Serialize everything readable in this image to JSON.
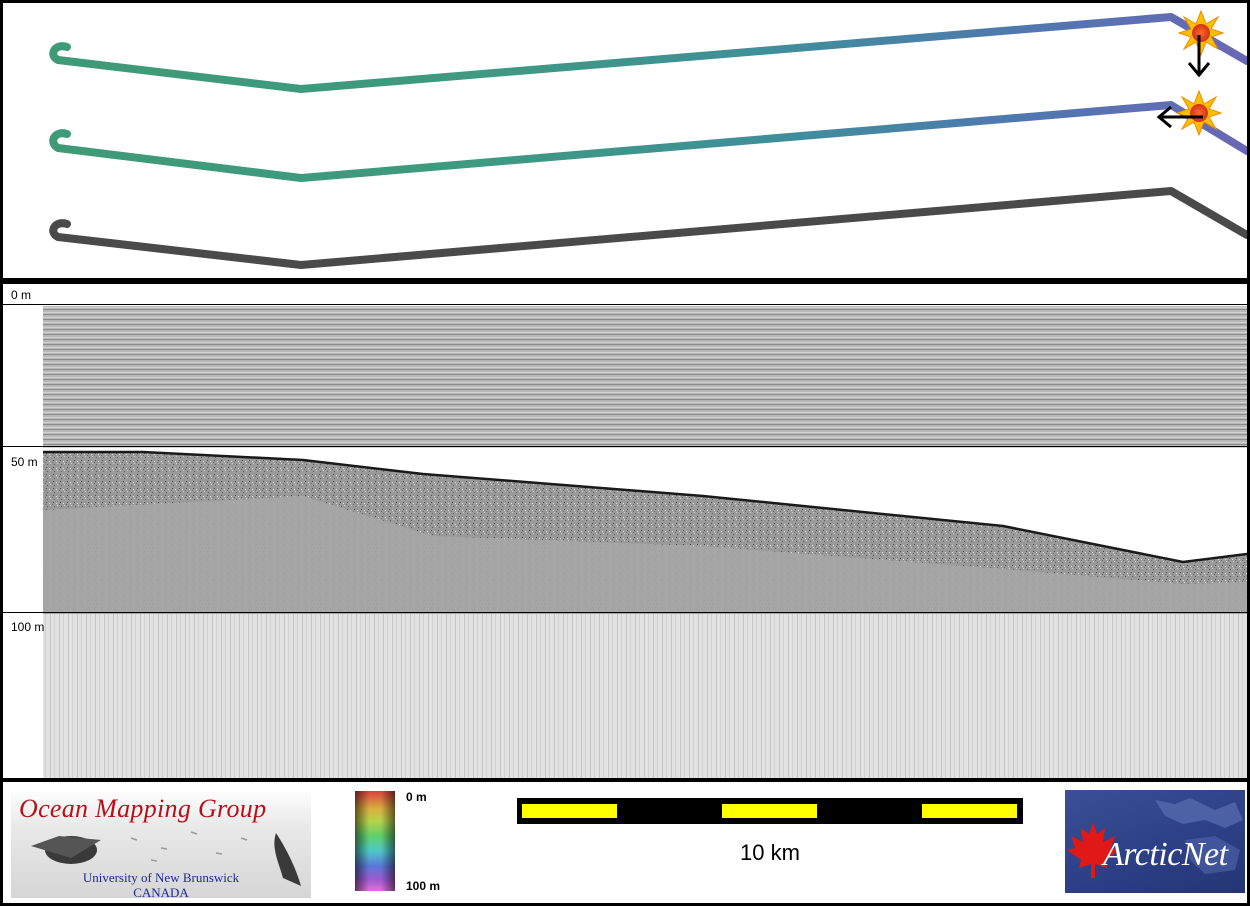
{
  "profile": {
    "depth_labels": [
      {
        "text": "0 m"
      },
      {
        "text": "50 m"
      },
      {
        "text": "100 m"
      }
    ]
  },
  "colorbar": {
    "top_label": "0 m",
    "bottom_label": "100 m"
  },
  "scalebar": {
    "label": "10 km",
    "fill_color": "#ffff00",
    "segment_color": "#000000"
  },
  "logos": {
    "omg": {
      "title": "Ocean Mapping Group",
      "university": "University of New Brunswick",
      "country": "CANADA"
    },
    "arcticnet": {
      "text": "ArcticNet"
    }
  },
  "colors": {
    "track_start": "#3f9a78",
    "track_end": "#6a67b5",
    "track_gray": "#4a4a4a",
    "arrow": "#000000",
    "burst_outer": "#ffbf00",
    "burst_inner": "#e8401c"
  }
}
